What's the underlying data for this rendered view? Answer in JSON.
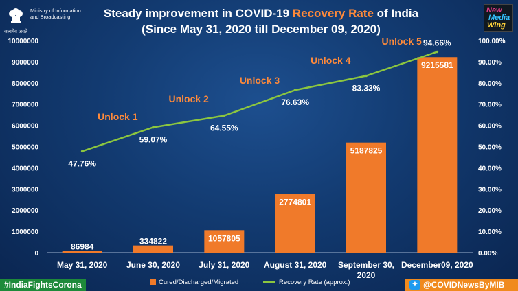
{
  "header": {
    "title_part1": "Steady improvement in COVID-19 ",
    "title_highlight": "Recovery Rate",
    "title_part2": " of India",
    "subtitle": "(Since May 31, 2020 till December 09, 2020)",
    "ministry_line1": "Ministry of Information",
    "ministry_line2": "and Broadcasting",
    "emblem_caption": "सत्यमेव जयते",
    "logo_text_1": "New",
    "logo_text_2": "Media",
    "logo_text_3": "Wing"
  },
  "footer": {
    "hashtag": "#IndiaFightsCorona",
    "handle": "@COVIDNewsByMIB",
    "legend_bar": "Cured/Discharged/Migrated",
    "legend_line": "Recovery Rate (approx.)"
  },
  "colors": {
    "bar": "#f07a2a",
    "line": "#8cc63f",
    "highlight": "#ff8a3a",
    "hashtag_bg": "#1e8a3a",
    "handle_bg": "#f08a1e"
  },
  "chart_data": {
    "type": "bar",
    "categories": [
      "May 31, 2020",
      "June 30, 2020",
      "July 31, 2020",
      "August 31, 2020",
      "September 30, 2020",
      "December09, 2020"
    ],
    "series": [
      {
        "name": "Cured/Discharged/Migrated",
        "type": "bar",
        "axis": "left",
        "values": [
          86984,
          334822,
          1057805,
          2774801,
          5187825,
          9215581
        ],
        "labels": [
          "86984",
          "334822",
          "1057805",
          "2774801",
          "5187825",
          "9215581"
        ]
      },
      {
        "name": "Recovery Rate (approx.)",
        "type": "line",
        "axis": "right",
        "values": [
          47.76,
          59.07,
          64.55,
          76.63,
          83.33,
          94.66
        ],
        "labels": [
          "47.76%",
          "59.07%",
          "64.55%",
          "76.63%",
          "83.33%",
          "94.66%"
        ]
      }
    ],
    "annotations": [
      "Unlock 1",
      "Unlock 2",
      "Unlock 3",
      "Unlock 4",
      "Unlock 5"
    ],
    "ylim_left": [
      0,
      10000000
    ],
    "ylim_right": [
      0,
      100
    ],
    "left_ticks": [
      "0",
      "1000000",
      "2000000",
      "3000000",
      "4000000",
      "5000000",
      "6000000",
      "7000000",
      "8000000",
      "9000000",
      "10000000"
    ],
    "right_ticks": [
      "0.00%",
      "10.00%",
      "20.00%",
      "30.00%",
      "40.00%",
      "50.00%",
      "60.00%",
      "70.00%",
      "80.00%",
      "90.00%",
      "100.00%"
    ],
    "grid": false,
    "legend": "bottom"
  }
}
